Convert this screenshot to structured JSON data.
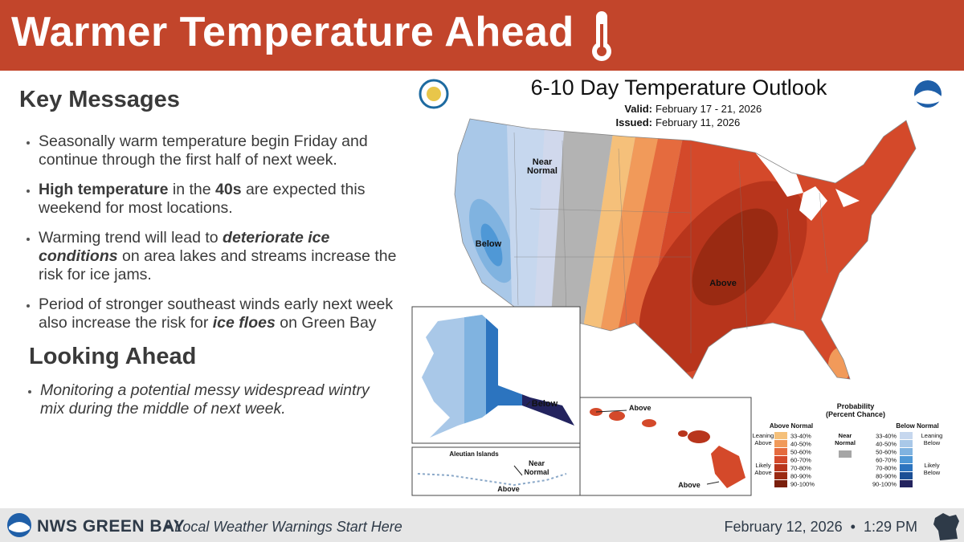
{
  "header": {
    "title": "Warmer Temperature Ahead"
  },
  "key_messages": {
    "heading": "Key Messages",
    "items": [
      [
        {
          "text": "Seasonally warm temperature begin Friday and continue through the first half of next week.",
          "style": "normal"
        }
      ],
      [
        {
          "text": "High temperature",
          "style": "bold"
        },
        {
          "text": " in the ",
          "style": "normal"
        },
        {
          "text": "40s",
          "style": "bold"
        },
        {
          "text": " are expected this weekend for most locations.",
          "style": "normal"
        }
      ],
      [
        {
          "text": "Warming trend will lead to ",
          "style": "normal"
        },
        {
          "text": "deteriorate ice conditions",
          "style": "bold-italic"
        },
        {
          "text": " on area lakes and streams increase the risk for ice jams.",
          "style": "normal"
        }
      ],
      [
        {
          "text": "Period of stronger southeast winds early next week also increase the risk for ",
          "style": "normal"
        },
        {
          "text": "ice floes",
          "style": "bold-italic"
        },
        {
          "text": " on Green Bay",
          "style": "normal"
        }
      ]
    ]
  },
  "looking_ahead": {
    "heading": "Looking Ahead",
    "items": [
      [
        {
          "text": "Monitoring a potential messy widespread wintry mix during the middle of next week.",
          "style": "italic"
        }
      ]
    ]
  },
  "map": {
    "title": "6-10 Day Temperature Outlook",
    "valid_label": "Valid:",
    "valid": "February 17 - 21, 2026",
    "issued_label": "Issued:",
    "issued": "February 11, 2026",
    "labels": [
      {
        "lines": [
          "Near",
          "Normal"
        ]
      },
      {
        "lines": [
          "Below"
        ]
      },
      {
        "lines": [
          "Above"
        ]
      },
      {
        "lines": [
          "Below"
        ]
      },
      {
        "lines": [
          "Aleutian Islands"
        ]
      },
      {
        "lines": [
          "Near",
          "Normal"
        ]
      },
      {
        "lines": [
          "Above"
        ]
      },
      {
        "lines": [
          "Above"
        ]
      },
      {
        "lines": [
          "Above"
        ]
      }
    ],
    "legend": {
      "title": [
        "Probability",
        "(Percent Chance)"
      ],
      "above_heading": "Above Normal",
      "below_heading": "Below Normal",
      "near": {
        "lines": [
          "Near",
          "Normal"
        ],
        "color": "#a6a6a6"
      },
      "leaning_above": [
        "Leaning",
        "Above"
      ],
      "likely_above": [
        "Likely",
        "Above"
      ],
      "leaning_below": [
        "Leaning",
        "Below"
      ],
      "likely_below": [
        "Likely",
        "Below"
      ],
      "above": [
        {
          "label": "33-40%",
          "color": "#f5c07a"
        },
        {
          "label": "40-50%",
          "color": "#f19a5a"
        },
        {
          "label": "50-60%",
          "color": "#e56b3e"
        },
        {
          "label": "60-70%",
          "color": "#d4492a"
        },
        {
          "label": "70-80%",
          "color": "#b8351c"
        },
        {
          "label": "80-90%",
          "color": "#9a2a12"
        },
        {
          "label": "90-100%",
          "color": "#7a1f0c"
        }
      ],
      "below": [
        {
          "label": "33-40%",
          "color": "#c6d7ee"
        },
        {
          "label": "40-50%",
          "color": "#a9c8e8"
        },
        {
          "label": "50-60%",
          "color": "#80b3e0"
        },
        {
          "label": "60-70%",
          "color": "#4f98d6"
        },
        {
          "label": "70-80%",
          "color": "#2c74bf"
        },
        {
          "label": "80-90%",
          "color": "#1b4f95"
        },
        {
          "label": "90-100%",
          "color": "#23235e"
        }
      ]
    }
  },
  "footer": {
    "office": "NWS GREEN BAY",
    "tagline": "• Local Weather Warnings Start Here",
    "date": "February 12, 2026",
    "separator": "•",
    "time": "1:29 PM"
  }
}
